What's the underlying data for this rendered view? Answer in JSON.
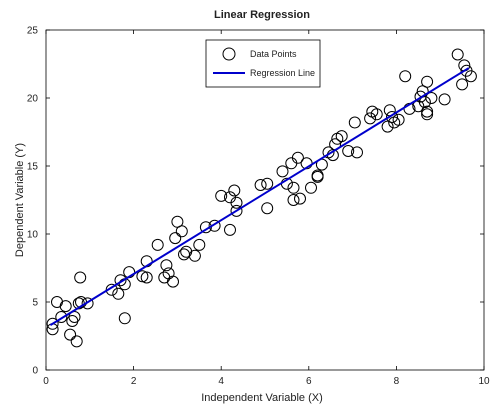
{
  "chart_data": {
    "type": "scatter",
    "title": "Linear Regression",
    "xlabel": "Independent Variable (X)",
    "ylabel": "Dependent Variable (Y)",
    "xlim": [
      0,
      10
    ],
    "ylim": [
      0,
      25
    ],
    "xticks": [
      "0",
      "2",
      "4",
      "6",
      "8",
      "10"
    ],
    "yticks": [
      "0",
      "5",
      "10",
      "15",
      "20",
      "25"
    ],
    "grid": false,
    "legend_position": "top-center",
    "colors": {
      "points": "#000000",
      "line": "#0000cc"
    },
    "series": [
      {
        "name": "Data Points",
        "kind": "scatter",
        "marker": "open-circle",
        "points": [
          [
            0.15,
            3.0
          ],
          [
            0.15,
            3.4
          ],
          [
            0.25,
            5.0
          ],
          [
            0.35,
            3.9
          ],
          [
            0.45,
            4.7
          ],
          [
            0.55,
            2.6
          ],
          [
            0.6,
            3.6
          ],
          [
            0.65,
            3.9
          ],
          [
            0.7,
            2.1
          ],
          [
            0.75,
            4.9
          ],
          [
            0.78,
            6.8
          ],
          [
            0.8,
            5.0
          ],
          [
            0.95,
            4.9
          ],
          [
            1.5,
            5.9
          ],
          [
            1.65,
            5.6
          ],
          [
            1.7,
            6.6
          ],
          [
            1.8,
            3.8
          ],
          [
            1.8,
            6.3
          ],
          [
            1.9,
            7.2
          ],
          [
            2.2,
            6.9
          ],
          [
            2.3,
            6.8
          ],
          [
            2.3,
            8.0
          ],
          [
            2.55,
            9.2
          ],
          [
            2.7,
            6.8
          ],
          [
            2.75,
            7.7
          ],
          [
            2.8,
            7.1
          ],
          [
            2.9,
            6.5
          ],
          [
            2.95,
            9.7
          ],
          [
            3.0,
            10.9
          ],
          [
            3.1,
            10.2
          ],
          [
            3.15,
            8.5
          ],
          [
            3.2,
            8.7
          ],
          [
            3.4,
            8.4
          ],
          [
            3.5,
            9.2
          ],
          [
            3.65,
            10.5
          ],
          [
            3.85,
            10.6
          ],
          [
            4.0,
            12.8
          ],
          [
            4.2,
            12.7
          ],
          [
            4.2,
            10.3
          ],
          [
            4.3,
            13.2
          ],
          [
            4.35,
            12.3
          ],
          [
            4.35,
            11.7
          ],
          [
            4.9,
            13.6
          ],
          [
            5.05,
            13.7
          ],
          [
            5.05,
            11.9
          ],
          [
            5.4,
            14.6
          ],
          [
            5.5,
            13.7
          ],
          [
            5.6,
            15.2
          ],
          [
            5.65,
            13.4
          ],
          [
            5.65,
            12.5
          ],
          [
            5.8,
            12.6
          ],
          [
            5.75,
            15.6
          ],
          [
            5.95,
            15.2
          ],
          [
            6.05,
            13.4
          ],
          [
            6.2,
            14.2
          ],
          [
            6.2,
            14.3
          ],
          [
            6.3,
            15.1
          ],
          [
            6.45,
            16.0
          ],
          [
            6.55,
            15.8
          ],
          [
            6.6,
            16.6
          ],
          [
            6.65,
            17.0
          ],
          [
            6.75,
            17.2
          ],
          [
            6.9,
            16.1
          ],
          [
            7.1,
            16.0
          ],
          [
            7.05,
            18.2
          ],
          [
            7.4,
            18.5
          ],
          [
            7.45,
            19.0
          ],
          [
            7.55,
            18.8
          ],
          [
            7.8,
            17.9
          ],
          [
            7.85,
            19.1
          ],
          [
            7.9,
            18.6
          ],
          [
            7.95,
            18.2
          ],
          [
            8.05,
            18.4
          ],
          [
            8.2,
            21.6
          ],
          [
            8.3,
            19.2
          ],
          [
            8.5,
            19.4
          ],
          [
            8.55,
            20.1
          ],
          [
            8.6,
            20.5
          ],
          [
            8.65,
            19.7
          ],
          [
            8.7,
            18.8
          ],
          [
            8.7,
            19.0
          ],
          [
            8.7,
            21.2
          ],
          [
            8.8,
            20.0
          ],
          [
            9.1,
            19.9
          ],
          [
            9.4,
            23.2
          ],
          [
            9.5,
            21.0
          ],
          [
            9.55,
            22.4
          ],
          [
            9.6,
            22.0
          ],
          [
            9.7,
            21.6
          ]
        ]
      },
      {
        "name": "Regression Line",
        "kind": "line",
        "points": [
          [
            0.1,
            3.3
          ],
          [
            9.65,
            22.2
          ]
        ]
      }
    ]
  }
}
